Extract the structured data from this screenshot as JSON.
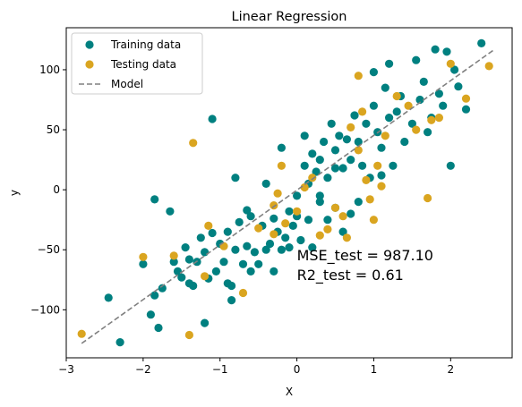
{
  "chart_data": {
    "type": "scatter",
    "title": "Linear Regression",
    "xlabel": "X",
    "ylabel": "y",
    "xlim": [
      -3.0,
      2.8
    ],
    "ylim": [
      -140,
      135
    ],
    "xticks": [
      -3,
      -2,
      -1,
      0,
      1,
      2
    ],
    "xtick_labels": [
      "−3",
      "−2",
      "−1",
      "0",
      "1",
      "2"
    ],
    "yticks": [
      -100,
      -50,
      0,
      50,
      100
    ],
    "ytick_labels": [
      "−100",
      "−50",
      "0",
      "50",
      "100"
    ],
    "grid": false,
    "legend": {
      "placement": "top-left",
      "entries": [
        {
          "label": "Training data",
          "color": "#008080",
          "marker": "circle"
        },
        {
          "label": "Testing data",
          "color": "#DAA520",
          "marker": "circle"
        },
        {
          "label": "Model",
          "color": "#808080",
          "marker": "dashed-line"
        }
      ]
    },
    "annotations": [
      "MSE_test = 987.10",
      "R2_test = 0.61"
    ],
    "series": [
      {
        "name": "Training data",
        "color": "#008080",
        "points": [
          [
            -2.45,
            -90
          ],
          [
            -2.3,
            -127
          ],
          [
            -2.0,
            -62
          ],
          [
            -1.9,
            -104
          ],
          [
            -1.85,
            -88
          ],
          [
            -1.8,
            -115
          ],
          [
            -1.75,
            -82
          ],
          [
            -1.65,
            -18
          ],
          [
            -1.6,
            -60
          ],
          [
            -1.55,
            -68
          ],
          [
            -1.5,
            -73
          ],
          [
            -1.45,
            -48
          ],
          [
            -1.4,
            -58
          ],
          [
            -1.4,
            -78
          ],
          [
            -1.35,
            -80
          ],
          [
            -1.3,
            -60
          ],
          [
            -1.25,
            -40
          ],
          [
            -1.2,
            -52
          ],
          [
            -1.2,
            -111
          ],
          [
            -1.15,
            -74
          ],
          [
            -1.1,
            59
          ],
          [
            -1.1,
            -36
          ],
          [
            -1.05,
            -68
          ],
          [
            -1.0,
            -45
          ],
          [
            -0.95,
            -60
          ],
          [
            -0.9,
            -35
          ],
          [
            -0.9,
            -78
          ],
          [
            -0.85,
            -80
          ],
          [
            -0.85,
            -92
          ],
          [
            -0.8,
            10
          ],
          [
            -0.8,
            -50
          ],
          [
            -0.75,
            -27
          ],
          [
            -0.7,
            -62
          ],
          [
            -0.65,
            -17
          ],
          [
            -0.65,
            -47
          ],
          [
            -0.6,
            -22
          ],
          [
            -0.6,
            -68
          ],
          [
            -0.55,
            -52
          ],
          [
            -0.5,
            -62
          ],
          [
            -0.45,
            -30
          ],
          [
            -0.4,
            -50
          ],
          [
            -0.35,
            -45
          ],
          [
            -0.3,
            -24
          ],
          [
            -0.3,
            -68
          ],
          [
            -0.25,
            -35
          ],
          [
            -0.2,
            -50
          ],
          [
            -0.15,
            -40
          ],
          [
            -0.1,
            -18
          ],
          [
            -0.1,
            -48
          ],
          [
            -0.05,
            -30
          ],
          [
            0.0,
            -5
          ],
          [
            0.0,
            -22
          ],
          [
            0.05,
            -42
          ],
          [
            0.1,
            45
          ],
          [
            0.1,
            20
          ],
          [
            0.15,
            5
          ],
          [
            0.15,
            -25
          ],
          [
            0.2,
            30
          ],
          [
            0.2,
            -48
          ],
          [
            0.25,
            15
          ],
          [
            0.3,
            -10
          ],
          [
            0.3,
            25
          ],
          [
            0.35,
            40
          ],
          [
            0.4,
            -25
          ],
          [
            0.4,
            10
          ],
          [
            0.45,
            55
          ],
          [
            0.5,
            33
          ],
          [
            0.5,
            -15
          ],
          [
            0.55,
            45
          ],
          [
            0.6,
            18
          ],
          [
            0.6,
            -35
          ],
          [
            0.65,
            42
          ],
          [
            0.7,
            25
          ],
          [
            0.7,
            -20
          ],
          [
            0.75,
            62
          ],
          [
            0.8,
            40
          ],
          [
            0.85,
            20
          ],
          [
            0.9,
            55
          ],
          [
            0.95,
            10
          ],
          [
            1.0,
            70
          ],
          [
            1.0,
            98
          ],
          [
            1.05,
            48
          ],
          [
            1.1,
            35
          ],
          [
            1.15,
            85
          ],
          [
            1.2,
            60
          ],
          [
            1.25,
            20
          ],
          [
            1.3,
            65
          ],
          [
            1.35,
            78
          ],
          [
            1.4,
            40
          ],
          [
            1.5,
            55
          ],
          [
            1.55,
            108
          ],
          [
            1.6,
            75
          ],
          [
            1.65,
            90
          ],
          [
            1.7,
            48
          ],
          [
            1.75,
            60
          ],
          [
            1.8,
            117
          ],
          [
            1.85,
            80
          ],
          [
            1.9,
            70
          ],
          [
            1.95,
            115
          ],
          [
            2.0,
            20
          ],
          [
            2.05,
            100
          ],
          [
            2.1,
            86
          ],
          [
            2.2,
            67
          ],
          [
            2.4,
            122
          ],
          [
            -1.85,
            -8
          ],
          [
            -0.4,
            5
          ],
          [
            -0.2,
            35
          ],
          [
            0.3,
            -5
          ],
          [
            0.5,
            18
          ],
          [
            0.8,
            -10
          ],
          [
            1.1,
            12
          ],
          [
            1.2,
            105
          ]
        ]
      },
      {
        "name": "Testing data",
        "color": "#DAA520",
        "points": [
          [
            -2.8,
            -120
          ],
          [
            -2.0,
            -56
          ],
          [
            -1.6,
            -55
          ],
          [
            -1.35,
            39
          ],
          [
            -1.2,
            -72
          ],
          [
            -1.15,
            -30
          ],
          [
            -1.4,
            -121
          ],
          [
            -0.95,
            -47
          ],
          [
            -0.7,
            -86
          ],
          [
            -0.5,
            -32
          ],
          [
            -0.3,
            -37
          ],
          [
            -0.25,
            -3
          ],
          [
            -0.2,
            20
          ],
          [
            -0.15,
            -28
          ],
          [
            0.0,
            -18
          ],
          [
            0.1,
            2
          ],
          [
            0.2,
            10
          ],
          [
            0.3,
            -38
          ],
          [
            0.4,
            -33
          ],
          [
            0.5,
            -15
          ],
          [
            0.6,
            -22
          ],
          [
            0.65,
            -40
          ],
          [
            0.7,
            52
          ],
          [
            0.8,
            33
          ],
          [
            0.85,
            65
          ],
          [
            0.9,
            8
          ],
          [
            0.95,
            -8
          ],
          [
            1.0,
            -25
          ],
          [
            1.05,
            20
          ],
          [
            1.1,
            3
          ],
          [
            1.15,
            45
          ],
          [
            1.3,
            78
          ],
          [
            1.45,
            70
          ],
          [
            1.55,
            50
          ],
          [
            1.7,
            -7
          ],
          [
            1.75,
            58
          ],
          [
            1.85,
            60
          ],
          [
            2.2,
            76
          ],
          [
            2.5,
            103
          ],
          [
            2.0,
            105
          ],
          [
            0.8,
            95
          ],
          [
            -0.3,
            -13
          ]
        ]
      }
    ],
    "model_line": {
      "name": "Model",
      "color": "#808080",
      "x": [
        -2.8,
        2.55
      ],
      "y": [
        -128,
        116
      ]
    }
  }
}
